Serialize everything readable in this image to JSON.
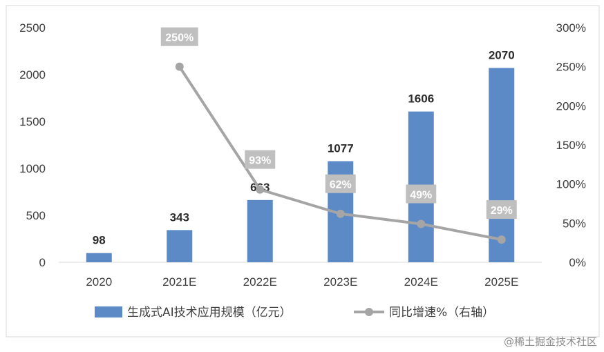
{
  "chart_data": {
    "type": "bar",
    "categories": [
      "2020",
      "2021E",
      "2022E",
      "2023E",
      "2024E",
      "2025E"
    ],
    "series": [
      {
        "name": "生成式AI技术应用规模（亿元）",
        "type": "bar",
        "axis": "left",
        "values": [
          98,
          343,
          663,
          1077,
          1606,
          2070
        ],
        "labels": [
          "98",
          "343",
          "663",
          "1077",
          "1606",
          "2070"
        ],
        "color": "#5b8ac6"
      },
      {
        "name": "同比增速%（右轴）",
        "type": "line",
        "axis": "right",
        "values": [
          null,
          250,
          93,
          62,
          49,
          29
        ],
        "labels": [
          "",
          "250%",
          "93%",
          "62%",
          "49%",
          "29%"
        ],
        "color": "#a5a5a5"
      }
    ],
    "y_left": {
      "ylim": [
        0,
        2500
      ],
      "ticks": [
        "0",
        "500",
        "1000",
        "1500",
        "2000",
        "2500"
      ]
    },
    "y_right": {
      "ylim": [
        0,
        300
      ],
      "ticks": [
        "0%",
        "50%",
        "100%",
        "150%",
        "200%",
        "250%",
        "300%"
      ]
    },
    "grid": false,
    "legend_position": "bottom"
  },
  "watermark": "@稀土掘金技术社区"
}
